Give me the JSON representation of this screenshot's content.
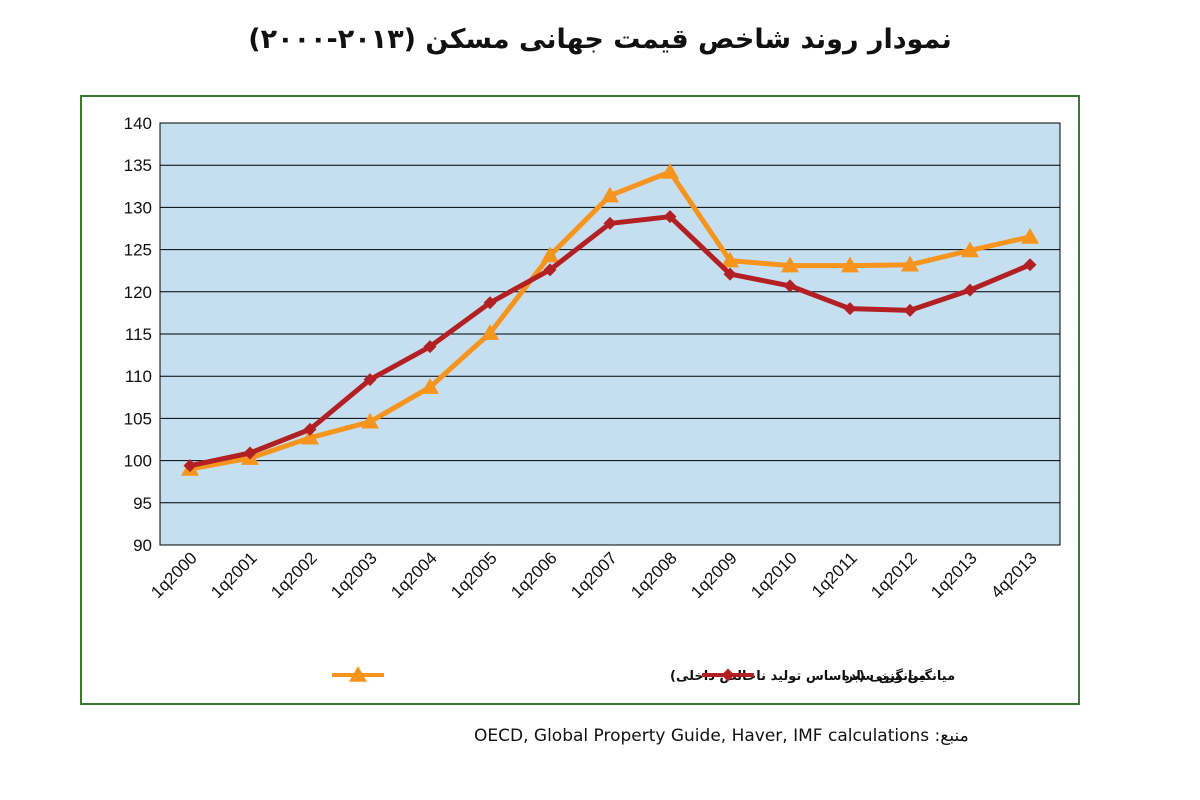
{
  "title": "نمودار روند شاخص قیمت جهانی مسکن (۲۰۱۳-۲۰۰۰)",
  "source": {
    "text": "OECD, Global Property Guide, Haver, IMF calculations",
    "label": "منبع:"
  },
  "colors": {
    "plot_background": "#c5dff0",
    "gridline": "#000000",
    "frame_border": "#3d7a2a",
    "weighted_series": "#f7941d",
    "simple_series": "#b22024"
  },
  "chart_data": {
    "type": "line",
    "categories": [
      "1q2000",
      "1q2001",
      "1q2002",
      "1q2003",
      "1q2004",
      "1q2005",
      "1q2006",
      "1q2007",
      "1q2008",
      "1q2009",
      "1q2010",
      "1q2011",
      "1q2012",
      "1q2013",
      "4q2013"
    ],
    "series": [
      {
        "name": "میانگین وزنی (براساس تولید ناخالص داخلی)",
        "marker": "triangle",
        "color": "#f7941d",
        "values": [
          99.0,
          100.3,
          102.7,
          104.6,
          108.7,
          115.1,
          124.3,
          131.4,
          134.2,
          123.7,
          123.1,
          123.1,
          123.2,
          124.9,
          126.5
        ]
      },
      {
        "name": "میانگین ساده",
        "marker": "diamond",
        "color": "#b22024",
        "values": [
          99.4,
          100.9,
          103.7,
          109.6,
          113.5,
          118.7,
          122.6,
          128.1,
          128.9,
          122.1,
          120.7,
          118.0,
          117.8,
          120.2,
          123.2
        ]
      }
    ],
    "ylim": [
      90,
      140
    ],
    "yticks": [
      90,
      95,
      100,
      105,
      110,
      115,
      120,
      125,
      130,
      135,
      140
    ],
    "xlabel": "",
    "ylabel": "",
    "grid": true,
    "legend_position": "bottom"
  }
}
